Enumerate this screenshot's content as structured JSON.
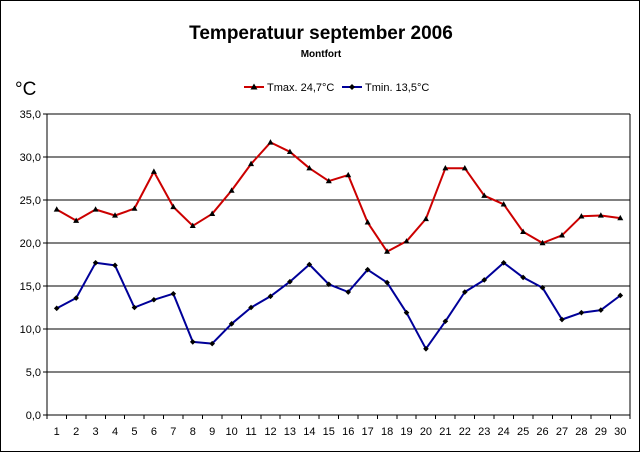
{
  "chart_data": {
    "type": "line",
    "title": "Temperatuur september 2006",
    "subtitle": "Montfort",
    "unit_label": "°C",
    "x": [
      1,
      2,
      3,
      4,
      5,
      6,
      7,
      8,
      9,
      10,
      11,
      12,
      13,
      14,
      15,
      16,
      17,
      18,
      19,
      20,
      21,
      22,
      23,
      24,
      25,
      26,
      27,
      28,
      29,
      30
    ],
    "ylim": [
      0,
      35
    ],
    "ytick_step": 5,
    "ytick_labels": [
      "0,0",
      "5,0",
      "10,0",
      "15,0",
      "20,0",
      "25,0",
      "30,0",
      "35,0"
    ],
    "grid": true,
    "legend_position": "top-center",
    "series": [
      {
        "name": "Tmax. 24,7°C",
        "color": "#cc0000",
        "marker": "triangle",
        "values": [
          23.9,
          22.6,
          23.9,
          23.2,
          24.0,
          28.3,
          24.2,
          22.0,
          23.4,
          26.1,
          29.2,
          31.7,
          30.6,
          28.7,
          27.2,
          27.9,
          22.4,
          19.0,
          20.2,
          22.8,
          28.7,
          28.7,
          25.5,
          24.5,
          21.3,
          20.0,
          20.9,
          23.1,
          23.2,
          22.9
        ]
      },
      {
        "name": "Tmin. 13,5°C",
        "color": "#000099",
        "marker": "diamond",
        "values": [
          12.4,
          13.6,
          17.7,
          17.4,
          12.5,
          13.4,
          14.1,
          8.5,
          8.3,
          10.6,
          12.5,
          13.8,
          15.5,
          17.5,
          15.2,
          14.3,
          16.9,
          15.4,
          11.9,
          7.7,
          10.9,
          14.3,
          15.7,
          17.7,
          16.0,
          14.8,
          11.1,
          11.9,
          12.2,
          13.9
        ]
      }
    ]
  }
}
